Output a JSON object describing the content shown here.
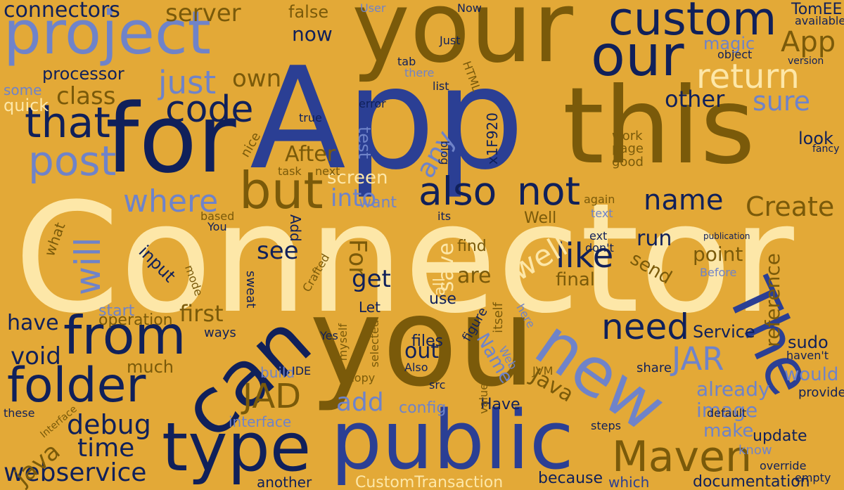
{
  "palette": {
    "background": "#e3a937",
    "navy": "#10205a",
    "royal": "#2b3f94",
    "periwinkle": "#6f83c9",
    "olive": "#7a5a0a",
    "cream": "#fde7a8"
  },
  "words": [
    {
      "text": "Connector",
      "color": "cream"
    },
    {
      "text": "App",
      "color": "royal"
    },
    {
      "text": "you",
      "color": "olive"
    },
    {
      "text": "your",
      "color": "olive"
    },
    {
      "text": "this",
      "color": "olive"
    },
    {
      "text": "for",
      "color": "navy"
    },
    {
      "text": "can",
      "color": "navy"
    },
    {
      "text": "public",
      "color": "royal"
    },
    {
      "text": "project",
      "color": "periwinkle"
    },
    {
      "text": "custom",
      "color": "navy"
    },
    {
      "text": "our",
      "color": "navy"
    },
    {
      "text": "type",
      "color": "navy"
    },
    {
      "text": "from",
      "color": "navy"
    },
    {
      "text": "folder",
      "color": "navy"
    },
    {
      "text": "new",
      "color": "periwinkle"
    },
    {
      "text": "The",
      "color": "royal"
    },
    {
      "text": "Maven",
      "color": "olive"
    },
    {
      "text": "but",
      "color": "olive"
    },
    {
      "text": "also",
      "color": "navy"
    },
    {
      "text": "not",
      "color": "navy"
    },
    {
      "text": "that",
      "color": "navy"
    },
    {
      "text": "post",
      "color": "periwinkle"
    },
    {
      "text": "will",
      "color": "periwinkle"
    },
    {
      "text": "code",
      "color": "navy"
    },
    {
      "text": "return",
      "color": "cream"
    },
    {
      "text": "App",
      "color": "olive"
    },
    {
      "text": "name",
      "color": "navy"
    },
    {
      "text": "where",
      "color": "periwinkle"
    },
    {
      "text": "need",
      "color": "navy"
    },
    {
      "text": "JAR",
      "color": "periwinkle"
    },
    {
      "text": "JAD",
      "color": "olive"
    },
    {
      "text": "like",
      "color": "navy"
    },
    {
      "text": "Create",
      "color": "olive"
    },
    {
      "text": "just",
      "color": "periwinkle"
    },
    {
      "text": "server",
      "color": "olive"
    },
    {
      "text": "connectors",
      "color": "navy"
    },
    {
      "text": "webservice",
      "color": "navy"
    },
    {
      "text": "debug",
      "color": "navy"
    },
    {
      "text": "time",
      "color": "navy"
    },
    {
      "text": "add",
      "color": "periwinkle"
    },
    {
      "text": "java",
      "color": "olive"
    },
    {
      "text": "void",
      "color": "navy"
    },
    {
      "text": "have",
      "color": "navy"
    },
    {
      "text": "class",
      "color": "olive"
    },
    {
      "text": "into",
      "color": "periwinkle"
    },
    {
      "text": "own",
      "color": "olive"
    },
    {
      "text": "sure",
      "color": "periwinkle"
    },
    {
      "text": "other",
      "color": "navy"
    },
    {
      "text": "first",
      "color": "olive"
    },
    {
      "text": "operation",
      "color": "olive"
    },
    {
      "text": "processor",
      "color": "navy"
    },
    {
      "text": "now",
      "color": "navy"
    },
    {
      "text": "false",
      "color": "olive"
    },
    {
      "text": "TomEE",
      "color": "navy"
    },
    {
      "text": "magic",
      "color": "periwinkle"
    },
    {
      "text": "well",
      "color": "cream"
    },
    {
      "text": "any",
      "color": "periwinkle"
    },
    {
      "text": "test",
      "color": "periwinkle"
    },
    {
      "text": "After",
      "color": "olive"
    },
    {
      "text": "screen",
      "color": "cream"
    },
    {
      "text": "For",
      "color": "olive"
    },
    {
      "text": "save",
      "color": "cream"
    },
    {
      "text": "see",
      "color": "navy"
    },
    {
      "text": "get",
      "color": "navy"
    },
    {
      "text": "run",
      "color": "navy"
    },
    {
      "text": "send",
      "color": "olive"
    },
    {
      "text": "point",
      "color": "olive"
    },
    {
      "text": "reference",
      "color": "olive"
    },
    {
      "text": "are",
      "color": "olive"
    },
    {
      "text": "final",
      "color": "olive"
    },
    {
      "text": "Java",
      "color": "olive"
    },
    {
      "text": "image",
      "color": "periwinkle"
    },
    {
      "text": "already",
      "color": "periwinkle"
    },
    {
      "text": "make",
      "color": "periwinkle"
    },
    {
      "text": "would",
      "color": "periwinkle"
    },
    {
      "text": "sudo",
      "color": "navy"
    },
    {
      "text": "update",
      "color": "navy"
    },
    {
      "text": "documentation",
      "color": "navy"
    },
    {
      "text": "CustomTransaction",
      "color": "cream"
    },
    {
      "text": "because",
      "color": "navy"
    },
    {
      "text": "another",
      "color": "navy"
    },
    {
      "text": "which",
      "color": "royal"
    },
    {
      "text": "Service",
      "color": "navy"
    },
    {
      "text": "Name",
      "color": "periwinkle"
    },
    {
      "text": "files",
      "color": "navy"
    },
    {
      "text": "out",
      "color": "navy"
    },
    {
      "text": "config",
      "color": "periwinkle"
    },
    {
      "text": "Have",
      "color": "navy"
    },
    {
      "text": "interface",
      "color": "periwinkle"
    },
    {
      "text": "build",
      "color": "periwinkle"
    },
    {
      "text": "much",
      "color": "olive"
    },
    {
      "text": "input",
      "color": "navy"
    },
    {
      "text": "start",
      "color": "periwinkle"
    },
    {
      "text": "quick",
      "color": "cream"
    },
    {
      "text": "some",
      "color": "periwinkle"
    },
    {
      "text": "look",
      "color": "navy"
    },
    {
      "text": "work",
      "color": "olive"
    },
    {
      "text": "page",
      "color": "olive"
    },
    {
      "text": "good",
      "color": "olive"
    },
    {
      "text": "want",
      "color": "periwinkle"
    },
    {
      "text": "Well",
      "color": "olive"
    },
    {
      "text": "find",
      "color": "olive"
    },
    {
      "text": "use",
      "color": "navy"
    },
    {
      "text": "all",
      "color": "cream"
    },
    {
      "text": "Let",
      "color": "navy"
    },
    {
      "text": "Add",
      "color": "navy"
    },
    {
      "text": "what",
      "color": "olive"
    },
    {
      "text": "You",
      "color": "navy"
    },
    {
      "text": "ways",
      "color": "navy"
    },
    {
      "text": "Yes",
      "color": "navy"
    },
    {
      "text": "IDE",
      "color": "navy"
    },
    {
      "text": "copy",
      "color": "olive"
    },
    {
      "text": "Also",
      "color": "navy"
    },
    {
      "text": "share",
      "color": "navy"
    },
    {
      "text": "provide",
      "color": "navy"
    },
    {
      "text": "haven't",
      "color": "navy"
    },
    {
      "text": "know",
      "color": "periwinkle"
    },
    {
      "text": "override",
      "color": "navy"
    },
    {
      "text": "empty",
      "color": "navy"
    },
    {
      "text": "default",
      "color": "navy"
    },
    {
      "text": "steps",
      "color": "navy"
    },
    {
      "text": "Before",
      "color": "periwinkle"
    },
    {
      "text": "version",
      "color": "navy"
    },
    {
      "text": "available",
      "color": "navy"
    },
    {
      "text": "object",
      "color": "navy"
    },
    {
      "text": "text",
      "color": "periwinkle"
    },
    {
      "text": "again",
      "color": "olive"
    },
    {
      "text": "task",
      "color": "olive"
    },
    {
      "text": "next",
      "color": "olive"
    },
    {
      "text": "error",
      "color": "navy"
    },
    {
      "text": "true",
      "color": "navy"
    },
    {
      "text": "blog",
      "color": "navy"
    },
    {
      "text": "list",
      "color": "navy"
    },
    {
      "text": "HTML",
      "color": "olive"
    },
    {
      "text": "x1F920",
      "color": "navy"
    },
    {
      "text": "Just",
      "color": "navy"
    },
    {
      "text": "tab",
      "color": "navy"
    },
    {
      "text": "there",
      "color": "periwinkle"
    },
    {
      "text": "User",
      "color": "periwinkle"
    },
    {
      "text": "Now",
      "color": "navy"
    },
    {
      "text": "its",
      "color": "navy"
    },
    {
      "text": "itself",
      "color": "olive"
    },
    {
      "text": "here",
      "color": "periwinkle"
    },
    {
      "text": "Web",
      "color": "periwinkle"
    },
    {
      "text": "JVM",
      "color": "olive"
    },
    {
      "text": "value",
      "color": "olive"
    },
    {
      "text": "figure",
      "color": "navy"
    },
    {
      "text": "src",
      "color": "navy"
    },
    {
      "text": "selected",
      "color": "olive"
    },
    {
      "text": "these",
      "color": "navy"
    },
    {
      "text": "Interface",
      "color": "olive"
    },
    {
      "text": "sweat",
      "color": "navy"
    },
    {
      "text": "mode",
      "color": "olive"
    },
    {
      "text": "based",
      "color": "olive"
    },
    {
      "text": "nice",
      "color": "olive"
    },
    {
      "text": "myself",
      "color": "olive"
    },
    {
      "text": "Crafted",
      "color": "olive"
    },
    {
      "text": "don't",
      "color": "navy"
    },
    {
      "text": "ext",
      "color": "navy"
    },
    {
      "text": "publication",
      "color": "navy"
    },
    {
      "text": "fancy",
      "color": "navy"
    }
  ]
}
